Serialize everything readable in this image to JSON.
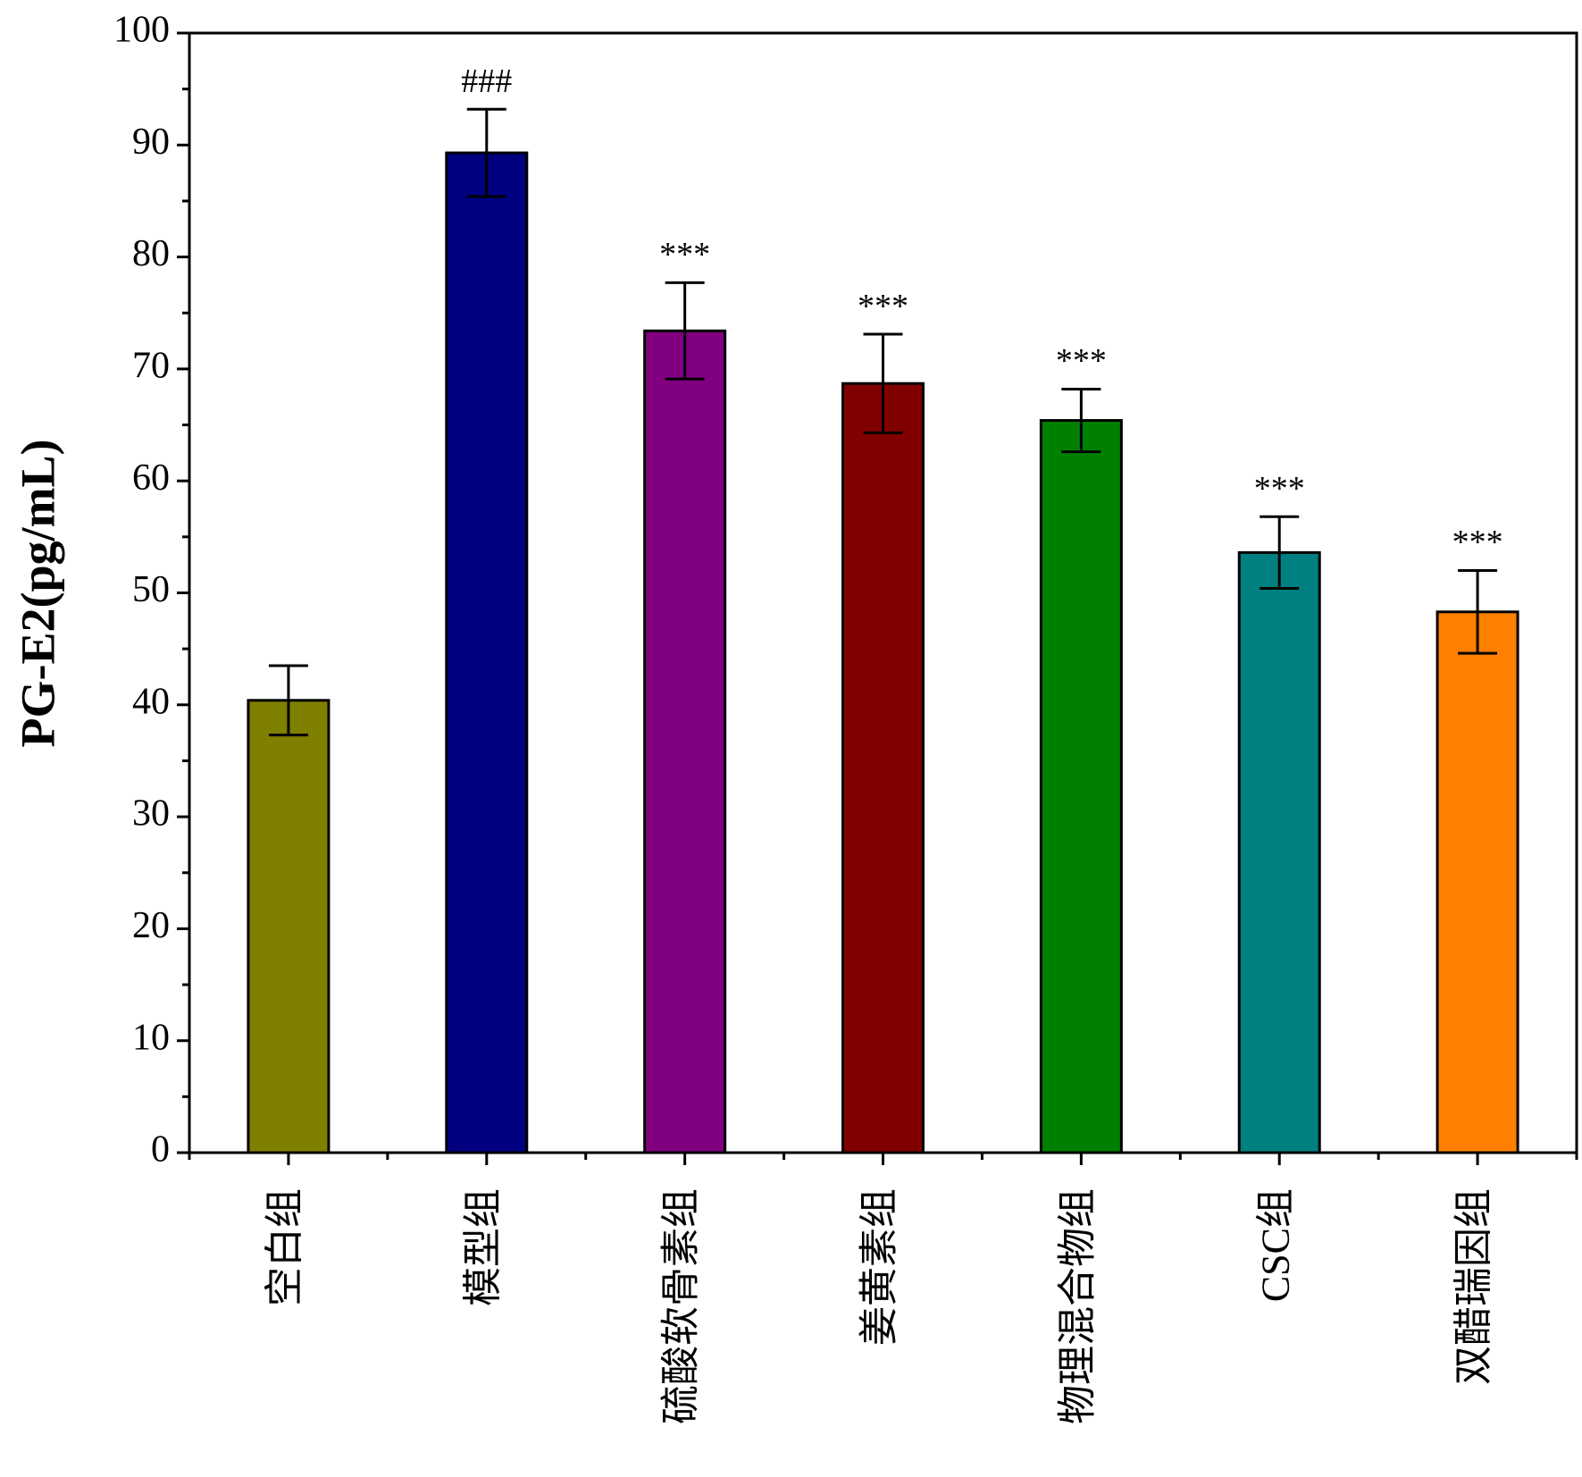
{
  "chart_data": {
    "type": "bar",
    "ylabel": "PG-E2(pg/mL)",
    "categories": [
      "空白组",
      "模型组",
      "硫酸软骨素组",
      "姜黄素组",
      "物理混合物组",
      "CSC组",
      "双醋瑞因组"
    ],
    "values": [
      40.4,
      89.3,
      73.4,
      68.7,
      65.4,
      53.6,
      48.3
    ],
    "errors": [
      3.1,
      3.9,
      4.3,
      4.4,
      2.8,
      3.2,
      3.7
    ],
    "annotations": [
      null,
      "###",
      "***",
      "***",
      "***",
      "***",
      "***"
    ],
    "colors": [
      "#808000",
      "#000080",
      "#800080",
      "#800000",
      "#008000",
      "#008080",
      "#ff8000"
    ],
    "ylim": [
      0,
      100
    ],
    "yticks": [
      0,
      10,
      20,
      30,
      40,
      50,
      60,
      70,
      80,
      90,
      100
    ]
  }
}
